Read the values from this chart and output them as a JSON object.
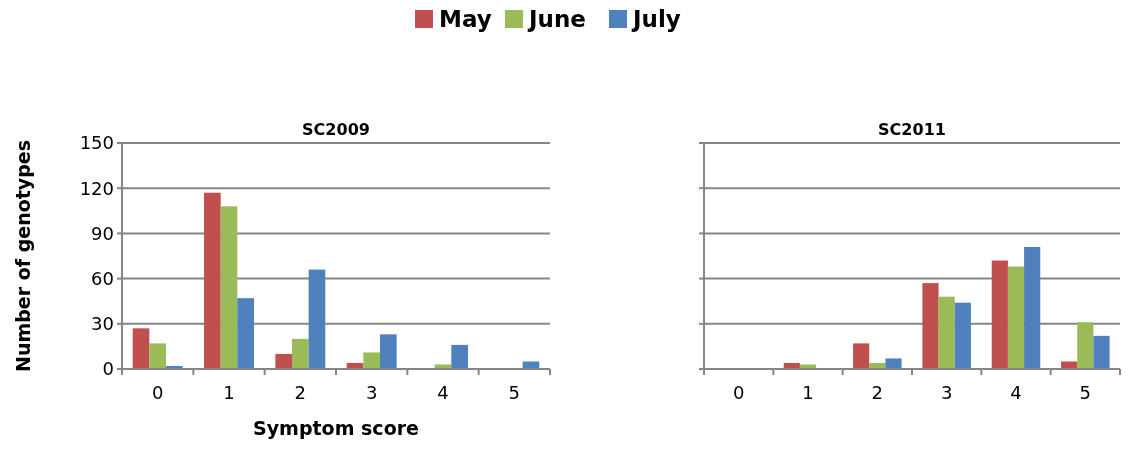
{
  "chart_data": [
    {
      "type": "bar",
      "title": "SC2009",
      "xlabel": "Symptom score",
      "ylabel": "Number of genotypes",
      "categories": [
        "0",
        "1",
        "2",
        "3",
        "4",
        "5"
      ],
      "series": [
        {
          "name": "May",
          "color": "#c0504d",
          "values": [
            27,
            117,
            10,
            4,
            0,
            0
          ]
        },
        {
          "name": "June",
          "color": "#9bbb59",
          "values": [
            17,
            108,
            20,
            11,
            3,
            0
          ]
        },
        {
          "name": "July",
          "color": "#4f81bd",
          "values": [
            2,
            47,
            66,
            23,
            16,
            5
          ]
        }
      ],
      "ylim": [
        0,
        150
      ],
      "yticks": [
        0,
        30,
        60,
        90,
        120,
        150
      ],
      "grid": "y",
      "legend": "top"
    },
    {
      "type": "bar",
      "title": "SC2011",
      "categories": [
        "0",
        "1",
        "2",
        "3",
        "4",
        "5"
      ],
      "series": [
        {
          "color": "#c0504d",
          "values": [
            0,
            4,
            17,
            57,
            72,
            5
          ]
        },
        {
          "color": "#9bbb59",
          "values": [
            0,
            3,
            4,
            48,
            68,
            31
          ]
        },
        {
          "color": "#4f81bd",
          "values": [
            0,
            0,
            7,
            44,
            81,
            22
          ]
        }
      ],
      "ylim": [
        0,
        150
      ],
      "yticks": [
        0,
        30,
        60,
        90,
        120,
        150
      ],
      "grid": "y",
      "tick_labels": "x"
    }
  ]
}
